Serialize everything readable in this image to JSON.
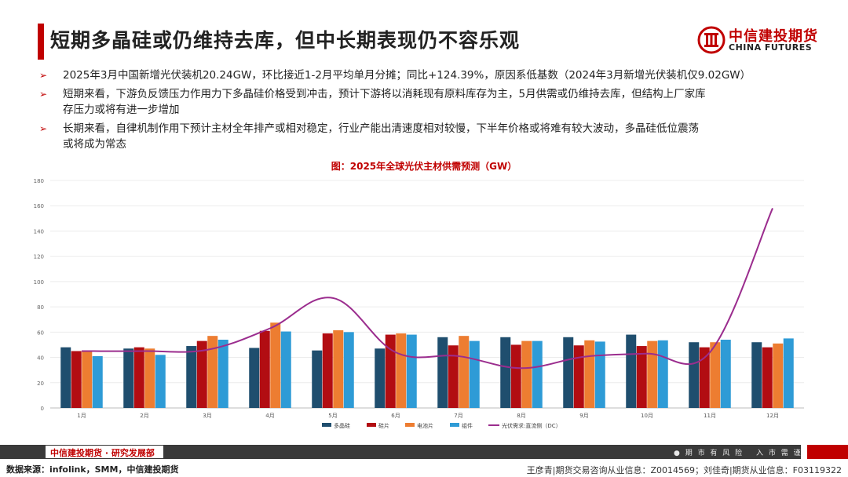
{
  "header": {
    "title": "短期多晶硅或仍维持去库，但中长期表现仍不容乐观",
    "logo_cn": "中信建投期货",
    "logo_en": "CHINA FUTURES",
    "logo_icon": "citic-logo-icon"
  },
  "bullets": [
    {
      "line1": "2025年3月中国新增光伏装机20.24GW，环比接近1-2月平均单月分摊；同比+124.39%，原因系低基数（2024年3月新增光伏装机仅9.02GW）",
      "line2": ""
    },
    {
      "line1": "短期来看，下游负反馈压力作用力下多晶硅价格受到冲击，预计下游将以消耗现有原料库存为主，5月供需或仍维持去库，但结构上厂家库",
      "line2": "存压力或将有进一步增加"
    },
    {
      "line1": "长期来看，自律机制作用下预计主材全年排产或相对稳定，行业产能出清速度相对较慢，下半年价格或将难有较大波动，多晶硅低位震荡",
      "line2": "或将成为常态"
    }
  ],
  "chart_data": {
    "type": "bar",
    "title": "图：2025年全球光伏主材供需预测（GW）",
    "categories": [
      "1月",
      "2月",
      "3月",
      "4月",
      "5月",
      "6月",
      "7月",
      "8月",
      "9月",
      "10月",
      "11月",
      "12月"
    ],
    "ylim": [
      0,
      180
    ],
    "yticks": [
      0,
      20,
      40,
      60,
      80,
      100,
      120,
      140,
      160,
      180
    ],
    "series": [
      {
        "name": "多晶硅",
        "color": "#1f4e6e",
        "values": [
          48,
          47,
          49,
          47.5,
          45.5,
          47,
          56,
          56,
          56,
          58,
          52,
          52
        ]
      },
      {
        "name": "硅片",
        "color": "#b20d12",
        "values": [
          45,
          48,
          53,
          61,
          59,
          58,
          49.5,
          50,
          49.5,
          49,
          48,
          48
        ]
      },
      {
        "name": "电池片",
        "color": "#ed7d31",
        "values": [
          45,
          47,
          57,
          67.5,
          61.5,
          59,
          57,
          53,
          53.5,
          53,
          52,
          51
        ]
      },
      {
        "name": "组件",
        "color": "#2e9bd6",
        "values": [
          41,
          42,
          54,
          60.5,
          60,
          58,
          53,
          53,
          52.5,
          53.5,
          54,
          55
        ]
      }
    ],
    "line": {
      "name": "光伏需求:直流侧（DC）",
      "color": "#9b2d8e",
      "values": [
        45,
        45,
        46,
        63,
        87,
        44,
        41,
        31.5,
        40.5,
        43,
        44,
        158
      ]
    }
  },
  "footer": {
    "left": "中信建投期货 · 研究发展部",
    "right": "● 期 市 有 风 险　 入 市 需 谨 慎"
  },
  "source": "数据来源：infolink，SMM，中信建投期货",
  "analyst": "王彦青|期货交易咨询从业信息：Z0014569；刘佳奇|期货从业信息：F03119322"
}
